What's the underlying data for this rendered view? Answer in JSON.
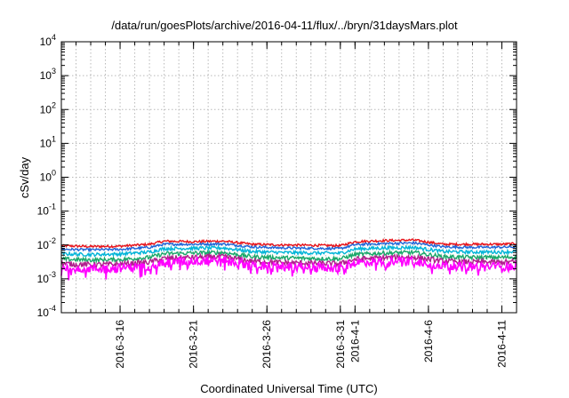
{
  "chart_data": {
    "type": "line",
    "title": "/data/run/goesPlots/archive/2016-04-11/flux/../bryn/31daysMars.plot",
    "xlabel": "Coordinated Universal Time (UTC)",
    "ylabel": "cSv/day",
    "yscale": "log",
    "ylim": [
      0.0001,
      10000
    ],
    "y_ticks": [
      {
        "base": "10",
        "exp": "-4",
        "value": 0.0001
      },
      {
        "base": "10",
        "exp": "-3",
        "value": 0.001
      },
      {
        "base": "10",
        "exp": "-2",
        "value": 0.01
      },
      {
        "base": "10",
        "exp": "-1",
        "value": 0.1
      },
      {
        "base": "10",
        "exp": "0",
        "value": 1
      },
      {
        "base": "10",
        "exp": "1",
        "value": 10
      },
      {
        "base": "10",
        "exp": "2",
        "value": 100
      },
      {
        "base": "10",
        "exp": "3",
        "value": 1000
      },
      {
        "base": "10",
        "exp": "4",
        "value": 10000
      }
    ],
    "xlim": [
      "2016-03-12",
      "2016-04-12"
    ],
    "x_ticks": [
      "2016-3-16",
      "2016-3-21",
      "2016-3-26",
      "2016-3-31",
      "2016-4-1",
      "2016-4-6",
      "2016-4-11"
    ],
    "grid": true,
    "legend": false,
    "series": [
      {
        "color": "#e8141b",
        "x": [
          "2016-03-12",
          "2016-03-14",
          "2016-03-16",
          "2016-03-18",
          "2016-03-19",
          "2016-03-21",
          "2016-03-23",
          "2016-03-25",
          "2016-03-27",
          "2016-03-29",
          "2016-03-31",
          "2016-04-01",
          "2016-04-03",
          "2016-04-05",
          "2016-04-07",
          "2016-04-09",
          "2016-04-11",
          "2016-04-12"
        ],
        "values": [
          0.0095,
          0.009,
          0.0092,
          0.0105,
          0.013,
          0.0125,
          0.013,
          0.0105,
          0.01,
          0.0098,
          0.0095,
          0.0125,
          0.0135,
          0.014,
          0.0105,
          0.0105,
          0.0105,
          0.011
        ]
      },
      {
        "color": "#1e64d8",
        "x": [
          "2016-03-12",
          "2016-03-14",
          "2016-03-16",
          "2016-03-18",
          "2016-03-19",
          "2016-03-21",
          "2016-03-23",
          "2016-03-25",
          "2016-03-27",
          "2016-03-29",
          "2016-03-31",
          "2016-04-01",
          "2016-04-03",
          "2016-04-05",
          "2016-04-07",
          "2016-04-09",
          "2016-04-11",
          "2016-04-12"
        ],
        "values": [
          0.0075,
          0.0072,
          0.0074,
          0.0085,
          0.0105,
          0.0105,
          0.0108,
          0.0088,
          0.0082,
          0.008,
          0.0078,
          0.0102,
          0.011,
          0.0115,
          0.0088,
          0.0085,
          0.0086,
          0.0088
        ]
      },
      {
        "color": "#00b4d8",
        "x": [
          "2016-03-12",
          "2016-03-14",
          "2016-03-16",
          "2016-03-18",
          "2016-03-19",
          "2016-03-21",
          "2016-03-23",
          "2016-03-25",
          "2016-03-27",
          "2016-03-29",
          "2016-03-31",
          "2016-04-01",
          "2016-04-03",
          "2016-04-05",
          "2016-04-07",
          "2016-04-09",
          "2016-04-11",
          "2016-04-12"
        ],
        "values": [
          0.0055,
          0.0052,
          0.0054,
          0.0062,
          0.0078,
          0.008,
          0.0082,
          0.0064,
          0.006,
          0.0058,
          0.0057,
          0.0076,
          0.0082,
          0.0085,
          0.0064,
          0.0062,
          0.0062,
          0.0064
        ]
      },
      {
        "color": "#1aa86a",
        "x": [
          "2016-03-12",
          "2016-03-14",
          "2016-03-16",
          "2016-03-18",
          "2016-03-19",
          "2016-03-21",
          "2016-03-23",
          "2016-03-25",
          "2016-03-27",
          "2016-03-29",
          "2016-03-31",
          "2016-04-01",
          "2016-04-03",
          "2016-04-05",
          "2016-04-07",
          "2016-04-09",
          "2016-04-11",
          "2016-04-12"
        ],
        "values": [
          0.0038,
          0.0036,
          0.0037,
          0.0043,
          0.0055,
          0.0058,
          0.006,
          0.0045,
          0.0042,
          0.004,
          0.0039,
          0.0052,
          0.0058,
          0.006,
          0.0045,
          0.0043,
          0.0043,
          0.0044
        ]
      },
      {
        "color": "#b01e8c",
        "x": [
          "2016-03-12",
          "2016-03-14",
          "2016-03-16",
          "2016-03-18",
          "2016-03-19",
          "2016-03-21",
          "2016-03-23",
          "2016-03-25",
          "2016-03-27",
          "2016-03-29",
          "2016-03-31",
          "2016-04-01",
          "2016-04-03",
          "2016-04-05",
          "2016-04-07",
          "2016-04-09",
          "2016-04-11",
          "2016-04-12"
        ],
        "values": [
          0.0028,
          0.0026,
          0.0027,
          0.0031,
          0.004,
          0.0043,
          0.0045,
          0.0033,
          0.003,
          0.0029,
          0.0028,
          0.0038,
          0.0042,
          0.0044,
          0.0033,
          0.0031,
          0.0031,
          0.0032
        ]
      },
      {
        "color": "#ff00ff",
        "x": [
          "2016-03-12",
          "2016-03-14",
          "2016-03-16",
          "2016-03-18",
          "2016-03-19",
          "2016-03-21",
          "2016-03-23",
          "2016-03-25",
          "2016-03-27",
          "2016-03-29",
          "2016-03-31",
          "2016-04-01",
          "2016-04-03",
          "2016-04-05",
          "2016-04-07",
          "2016-04-09",
          "2016-04-11",
          "2016-04-12"
        ],
        "values": [
          0.0022,
          0.002,
          0.0021,
          0.0024,
          0.0031,
          0.0034,
          0.0036,
          0.0025,
          0.0023,
          0.0022,
          0.0021,
          0.003,
          0.0033,
          0.0035,
          0.0025,
          0.0023,
          0.0023,
          0.0024
        ]
      }
    ]
  }
}
